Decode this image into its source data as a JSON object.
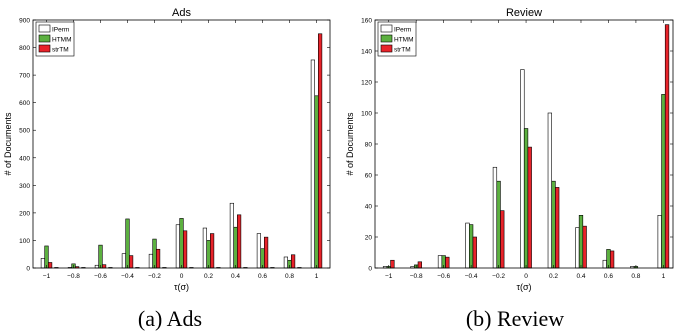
{
  "chart_data": [
    {
      "type": "bar",
      "title": "Ads",
      "caption": "(a) Ads",
      "xlabel": "τ(σ)",
      "ylabel": "# of Documents",
      "categories": [
        "-1",
        "-0.9",
        "-0.8",
        "-0.7",
        "-0.6",
        "-0.5",
        "-0.4",
        "-0.3",
        "-0.2",
        "-0.1",
        "0",
        "0.1",
        "0.2",
        "0.3",
        "0.4",
        "0.5",
        "0.6",
        "0.7",
        "0.8",
        "0.9",
        "1"
      ],
      "xticks": [
        "−1",
        "−0.8",
        "−0.6",
        "−0.4",
        "−0.2",
        "0",
        "0.2",
        "0.4",
        "0.6",
        "0.8",
        "1"
      ],
      "ylim": [
        0,
        900
      ],
      "yticks": [
        0,
        100,
        200,
        300,
        400,
        500,
        600,
        700,
        800,
        900
      ],
      "legend_position": "top-left",
      "series": [
        {
          "name": "IPerm",
          "color": "#ffffff",
          "values": [
            35,
            2,
            2,
            2,
            10,
            2,
            52,
            2,
            50,
            2,
            157,
            2,
            145,
            2,
            235,
            2,
            125,
            2,
            40,
            2,
            755
          ]
        },
        {
          "name": "HTMM",
          "color": "#5cb040",
          "values": [
            80,
            0,
            15,
            0,
            83,
            0,
            178,
            0,
            105,
            0,
            180,
            0,
            100,
            0,
            148,
            0,
            70,
            0,
            28,
            0,
            625
          ]
        },
        {
          "name": "strTM",
          "color": "#e8232a",
          "values": [
            20,
            0,
            5,
            0,
            12,
            0,
            45,
            0,
            68,
            0,
            135,
            0,
            125,
            0,
            193,
            0,
            112,
            0,
            48,
            0,
            850
          ]
        }
      ]
    },
    {
      "type": "bar",
      "title": "Review",
      "caption": "(b) Review",
      "xlabel": "τ(σ)",
      "ylabel": "# of Documents",
      "categories": [
        "-1",
        "-0.9",
        "-0.8",
        "-0.7",
        "-0.6",
        "-0.5",
        "-0.4",
        "-0.3",
        "-0.2",
        "-0.1",
        "0",
        "0.1",
        "0.2",
        "0.3",
        "0.4",
        "0.5",
        "0.6",
        "0.7",
        "0.8",
        "0.9",
        "1"
      ],
      "xticks": [
        "−1",
        "−0.8",
        "−0.6",
        "−0.4",
        "−0.2",
        "0",
        "0.2",
        "0.4",
        "0.6",
        "0.8",
        "1"
      ],
      "ylim": [
        0,
        160
      ],
      "yticks": [
        0,
        20,
        40,
        60,
        80,
        100,
        120,
        140,
        160
      ],
      "legend_position": "top-left",
      "series": [
        {
          "name": "IPerm",
          "color": "#ffffff",
          "values": [
            1,
            0,
            1,
            0,
            8,
            0,
            29,
            0,
            65,
            0,
            128,
            0,
            100,
            0,
            26,
            0,
            5,
            0,
            1,
            0,
            34
          ]
        },
        {
          "name": "HTMM",
          "color": "#5cb040",
          "values": [
            1,
            0,
            2,
            0,
            8,
            0,
            28,
            0,
            56,
            0,
            90,
            0,
            56,
            0,
            34,
            0,
            12,
            0,
            1,
            0,
            112
          ]
        },
        {
          "name": "strTM",
          "color": "#e8232a",
          "values": [
            5,
            0,
            4,
            0,
            7,
            0,
            20,
            0,
            37,
            0,
            78,
            0,
            52,
            0,
            27,
            0,
            11,
            0,
            0,
            0,
            157
          ]
        }
      ]
    }
  ]
}
